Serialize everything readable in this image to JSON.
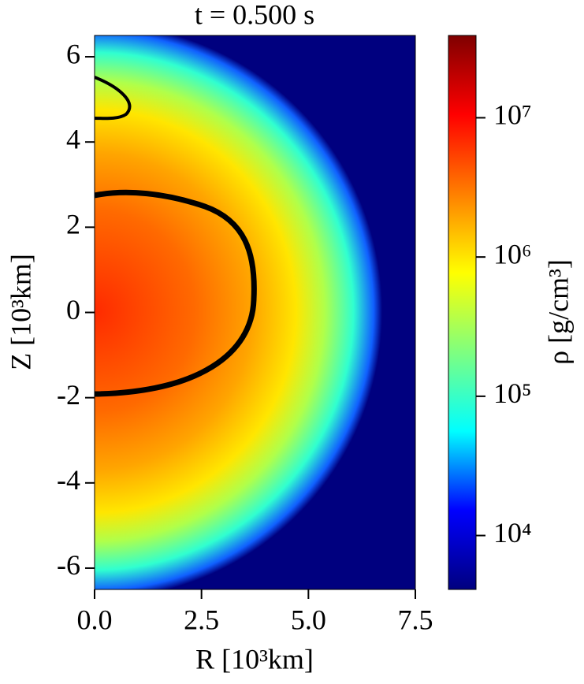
{
  "chart_data": {
    "type": "heatmap",
    "title": "t = 0.500 s",
    "x_label": "R [10³km]",
    "y_label": "Z [10³km]",
    "colorbar_label": "ρ [g/cm³]",
    "xlim": [
      0,
      7.5
    ],
    "xticks": [
      {
        "value": 0,
        "label": "0.0"
      },
      2.5,
      {
        "value": 5,
        "label": "5.0"
      },
      7.5
    ],
    "ylim": [
      -6.5,
      6.5
    ],
    "yticks": [
      -6,
      -4,
      -2,
      0,
      2,
      4,
      6
    ],
    "colormap": "jet",
    "colorbar_scale": "log",
    "clim": [
      4100,
      39000000
    ],
    "colorbar_ticks": [
      {
        "value": 10000,
        "label": "10⁴"
      },
      {
        "value": 100000,
        "label": "10⁵"
      },
      {
        "value": 1000000,
        "label": "10⁶"
      },
      {
        "value": 10000000,
        "label": "10⁷"
      }
    ]
  }
}
